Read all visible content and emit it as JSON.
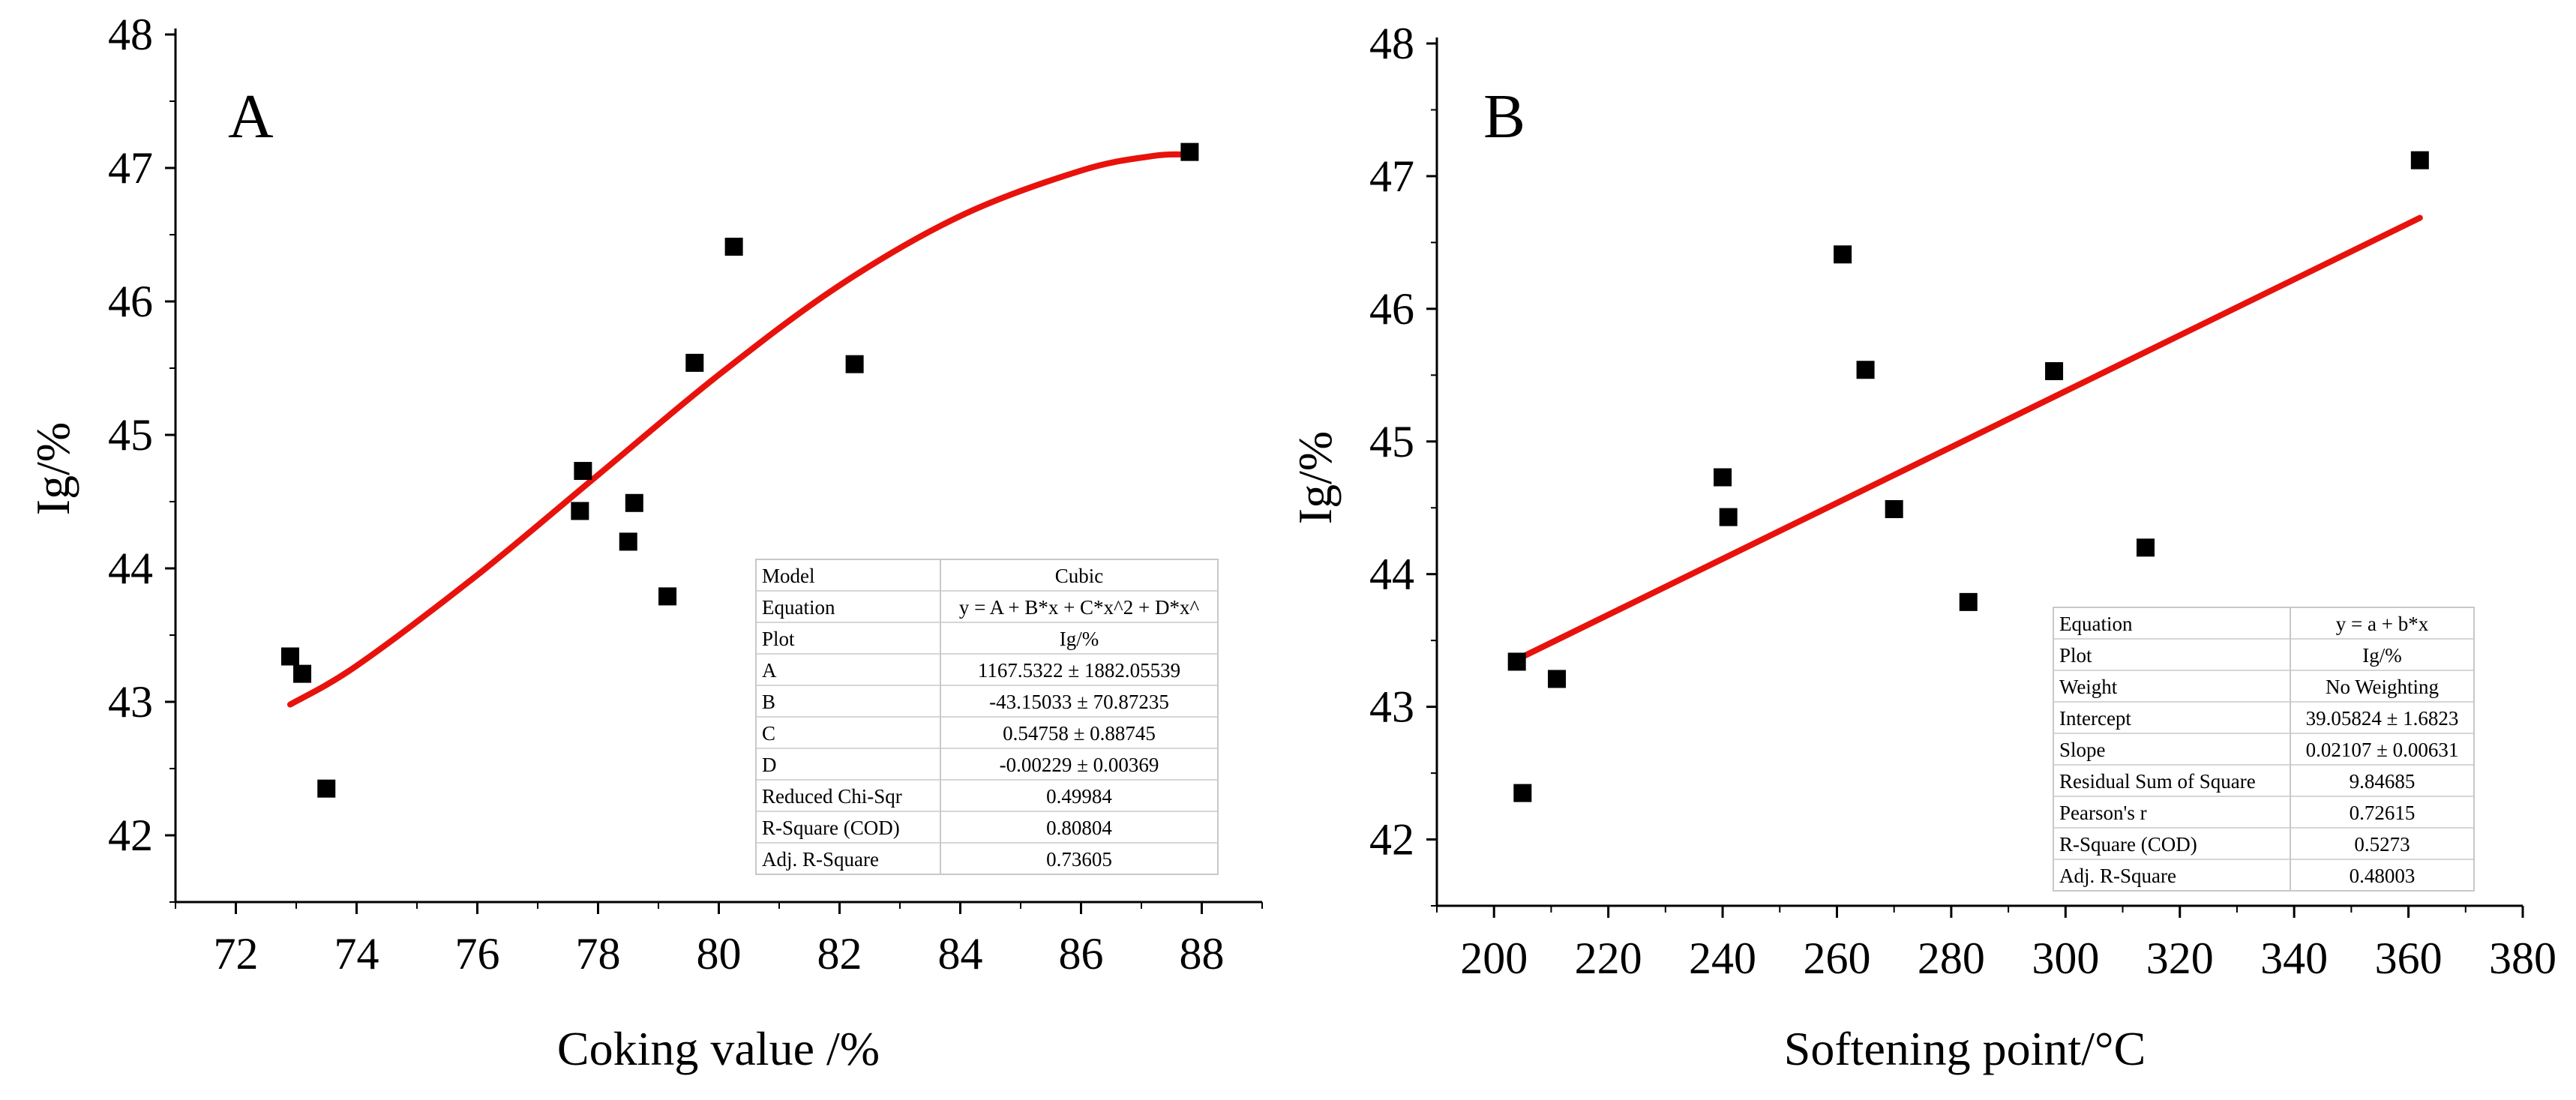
{
  "colors": {
    "fit_line": "#e8120c",
    "marker": "#000000",
    "axis": "#000000",
    "table_border": "#c8c8c8"
  },
  "chart_data": [
    {
      "type": "scatter",
      "panel": "A",
      "xlabel": "Coking value /%",
      "ylabel": "Ig/%",
      "xlim": [
        71,
        89
      ],
      "ylim": [
        41.5,
        48
      ],
      "xticks": [
        72,
        74,
        76,
        78,
        80,
        82,
        84,
        86,
        88
      ],
      "yticks": [
        42,
        43,
        44,
        45,
        46,
        47,
        48
      ],
      "points": [
        {
          "x": 72.9,
          "y": 43.34
        },
        {
          "x": 73.1,
          "y": 43.21
        },
        {
          "x": 73.5,
          "y": 42.35
        },
        {
          "x": 77.7,
          "y": 44.43
        },
        {
          "x": 77.75,
          "y": 44.73
        },
        {
          "x": 78.5,
          "y": 44.2
        },
        {
          "x": 78.6,
          "y": 44.49
        },
        {
          "x": 79.15,
          "y": 43.79
        },
        {
          "x": 79.6,
          "y": 45.54
        },
        {
          "x": 80.25,
          "y": 46.41
        },
        {
          "x": 82.25,
          "y": 45.53
        },
        {
          "x": 87.8,
          "y": 47.12
        }
      ],
      "fit": {
        "model": "cubic",
        "x_range": [
          72.9,
          87.8
        ],
        "curve": [
          {
            "x": 72.9,
            "y": 42.98
          },
          {
            "x": 74.0,
            "y": 43.27
          },
          {
            "x": 76.0,
            "y": 43.95
          },
          {
            "x": 78.0,
            "y": 44.7
          },
          {
            "x": 80.0,
            "y": 45.45
          },
          {
            "x": 82.0,
            "y": 46.12
          },
          {
            "x": 84.0,
            "y": 46.64
          },
          {
            "x": 86.0,
            "y": 46.98
          },
          {
            "x": 87.2,
            "y": 47.09
          },
          {
            "x": 87.8,
            "y": 47.1
          }
        ]
      },
      "stats_table": [
        [
          "Model",
          "Cubic"
        ],
        [
          "Equation",
          "y = A + B*x + C*x^2 + D*x^"
        ],
        [
          "Plot",
          "Ig/%"
        ],
        [
          "A",
          "1167.5322 ± 1882.05539"
        ],
        [
          "B",
          "-43.15033 ± 70.87235"
        ],
        [
          "C",
          "0.54758 ± 0.88745"
        ],
        [
          "D",
          "-0.00229 ± 0.00369"
        ],
        [
          "Reduced Chi-Sqr",
          "0.49984"
        ],
        [
          "R-Square (COD)",
          "0.80804"
        ],
        [
          "Adj. R-Square",
          "0.73605"
        ]
      ]
    },
    {
      "type": "scatter",
      "panel": "B",
      "xlabel": "Softening point/°C",
      "ylabel": "Ig/%",
      "xlim": [
        190,
        380
      ],
      "ylim": [
        41.5,
        48
      ],
      "xticks": [
        200,
        220,
        240,
        260,
        280,
        300,
        320,
        340,
        360,
        380
      ],
      "yticks": [
        42,
        43,
        44,
        45,
        46,
        47,
        48
      ],
      "points": [
        {
          "x": 204,
          "y": 43.34
        },
        {
          "x": 205,
          "y": 42.35
        },
        {
          "x": 211,
          "y": 43.21
        },
        {
          "x": 240,
          "y": 44.73
        },
        {
          "x": 241,
          "y": 44.43
        },
        {
          "x": 261,
          "y": 46.41
        },
        {
          "x": 265,
          "y": 45.54
        },
        {
          "x": 270,
          "y": 44.49
        },
        {
          "x": 283,
          "y": 43.79
        },
        {
          "x": 298,
          "y": 45.53
        },
        {
          "x": 314,
          "y": 44.2
        },
        {
          "x": 362,
          "y": 47.12
        }
      ],
      "fit": {
        "model": "linear",
        "intercept": 39.05824,
        "slope": 0.02107,
        "x_range": [
          204,
          362
        ]
      },
      "stats_table": [
        [
          "Equation",
          "y = a + b*x"
        ],
        [
          "Plot",
          "Ig/%"
        ],
        [
          "Weight",
          "No Weighting"
        ],
        [
          "Intercept",
          "39.05824 ± 1.6823"
        ],
        [
          "Slope",
          "0.02107 ± 0.00631"
        ],
        [
          "Residual Sum of Square",
          "9.84685"
        ],
        [
          "Pearson's r",
          "0.72615"
        ],
        [
          "R-Square (COD)",
          "0.5273"
        ],
        [
          "Adj. R-Square",
          "0.48003"
        ]
      ]
    }
  ]
}
